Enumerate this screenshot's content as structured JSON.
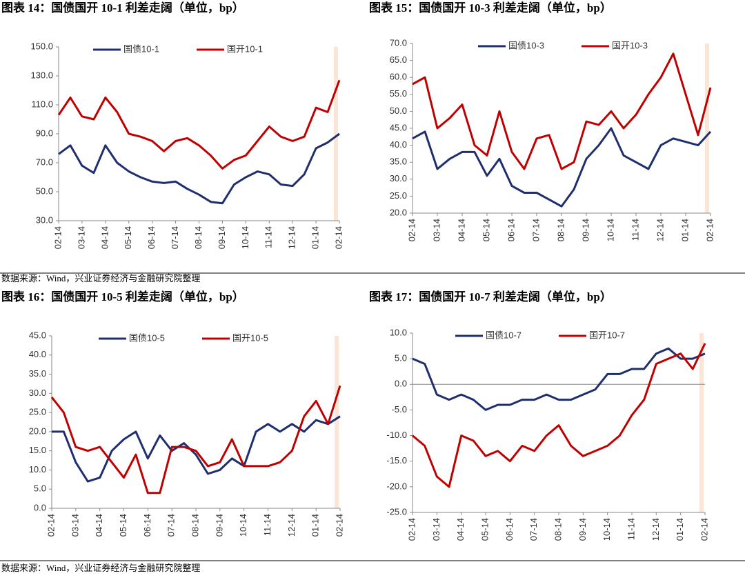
{
  "chart_data": [
    {
      "type": "line",
      "title": "图表 14：国债国开 10-1 利差走阔（单位，bp）",
      "categories": [
        "02-14",
        null,
        "03-14",
        null,
        "04-14",
        null,
        "05-14",
        null,
        "06-14",
        null,
        "07-14",
        null,
        "08-14",
        null,
        "09-14",
        null,
        "10-14",
        null,
        "11-14",
        null,
        "12-14",
        null,
        "01-14",
        null,
        "02-14"
      ],
      "series": [
        {
          "name": "国债10-1",
          "color": "#1f2f6e",
          "values": [
            76,
            82,
            68,
            63,
            82,
            70,
            64,
            60,
            57,
            56,
            57,
            52,
            48,
            43,
            42,
            55,
            60,
            64,
            62,
            55,
            54,
            62,
            80,
            84,
            90
          ]
        },
        {
          "name": "国开10-1",
          "color": "#c00000",
          "values": [
            103,
            115,
            102,
            100,
            115,
            105,
            90,
            88,
            85,
            78,
            85,
            87,
            82,
            75,
            66,
            72,
            75,
            85,
            95,
            88,
            85,
            88,
            108,
            105,
            127
          ]
        }
      ],
      "ylim": [
        30,
        150
      ],
      "yticks": [
        {
          "value": 30,
          "label": "30.0"
        },
        {
          "value": 50,
          "label": "50.0"
        },
        {
          "value": 70,
          "label": "70.0"
        },
        {
          "value": 90,
          "label": "90.0"
        },
        {
          "value": 110,
          "label": "110.0"
        },
        {
          "value": 130,
          "label": "130.0"
        },
        {
          "value": 150,
          "label": "150.0"
        }
      ],
      "legend": "top"
    },
    {
      "type": "line",
      "title": "图表 15：国债国开 10-3 利差走阔（单位，bp）",
      "categories": [
        "02-14",
        null,
        "03-14",
        null,
        "04-14",
        null,
        "05-14",
        null,
        "06-14",
        null,
        "07-14",
        null,
        "08-14",
        null,
        "09-14",
        null,
        "10-14",
        null,
        "11-14",
        null,
        "12-14",
        null,
        "01-14",
        null,
        "02-14"
      ],
      "series": [
        {
          "name": "国债10-3",
          "color": "#1f2f6e",
          "values": [
            42,
            44,
            33,
            36,
            38,
            38,
            31,
            36,
            28,
            26,
            26,
            24,
            22,
            27,
            36,
            40,
            45,
            37,
            35,
            33,
            40,
            42,
            41,
            40,
            44
          ]
        },
        {
          "name": "国开10-3",
          "color": "#c00000",
          "values": [
            58,
            60,
            45,
            48,
            52,
            40,
            37,
            50,
            38,
            33,
            42,
            43,
            33,
            35,
            47,
            46,
            50,
            45,
            49,
            55,
            60,
            67,
            55,
            43,
            57
          ]
        }
      ],
      "ylim": [
        20,
        70
      ],
      "yticks": [
        {
          "value": 20,
          "label": "20.0"
        },
        {
          "value": 25,
          "label": "25.0"
        },
        {
          "value": 30,
          "label": "30.0"
        },
        {
          "value": 35,
          "label": "35.0"
        },
        {
          "value": 40,
          "label": "40.0"
        },
        {
          "value": 45,
          "label": "45.0"
        },
        {
          "value": 50,
          "label": "50.0"
        },
        {
          "value": 55,
          "label": "55.0"
        },
        {
          "value": 60,
          "label": "60.0"
        },
        {
          "value": 65,
          "label": "65.0"
        },
        {
          "value": 70,
          "label": "70.0"
        }
      ],
      "legend": "top"
    },
    {
      "type": "line",
      "title": "图表 16：国债国开 10-5 利差走阔（单位，bp）",
      "categories": [
        "02-14",
        null,
        "03-14",
        null,
        "04-14",
        null,
        "05-14",
        null,
        "06-14",
        null,
        "07-14",
        null,
        "08-14",
        null,
        "09-14",
        null,
        "10-14",
        null,
        "11-14",
        null,
        "12-14",
        null,
        "01-14",
        null,
        "02-14"
      ],
      "series": [
        {
          "name": "国债10-5",
          "color": "#1f2f6e",
          "values": [
            20,
            20,
            12,
            7,
            8,
            15,
            18,
            20,
            13,
            19,
            15,
            17,
            14,
            9,
            10,
            13,
            11,
            20,
            22,
            20,
            22,
            20,
            23,
            22,
            24
          ]
        },
        {
          "name": "国开10-5",
          "color": "#c00000",
          "values": [
            29,
            25,
            16,
            15,
            16,
            12,
            8,
            14,
            4,
            4,
            16,
            16,
            15,
            11,
            12,
            18,
            11,
            11,
            11,
            12,
            15,
            24,
            28,
            22,
            32
          ]
        }
      ],
      "ylim": [
        0,
        45
      ],
      "yticks": [
        {
          "value": 0,
          "label": "0.0"
        },
        {
          "value": 5,
          "label": "5.0"
        },
        {
          "value": 10,
          "label": "10.0"
        },
        {
          "value": 15,
          "label": "15.0"
        },
        {
          "value": 20,
          "label": "20.0"
        },
        {
          "value": 25,
          "label": "25.0"
        },
        {
          "value": 30,
          "label": "30.0"
        },
        {
          "value": 35,
          "label": "35.0"
        },
        {
          "value": 40,
          "label": "40.0"
        },
        {
          "value": 45,
          "label": "45.0"
        }
      ],
      "legend": "top"
    },
    {
      "type": "line",
      "title": "图表 17：国债国开 10-7 利差走阔（单位，bp）",
      "categories": [
        "02-14",
        null,
        "03-14",
        null,
        "04-14",
        null,
        "05-14",
        null,
        "06-14",
        null,
        "07-14",
        null,
        "08-14",
        null,
        "09-14",
        null,
        "10-14",
        null,
        "11-14",
        null,
        "12-14",
        null,
        "01-14",
        null,
        "02-14"
      ],
      "series": [
        {
          "name": "国债10-7",
          "color": "#1f2f6e",
          "values": [
            5,
            4,
            -2,
            -3,
            -2,
            -3,
            -5,
            -4,
            -4,
            -3,
            -3,
            -2,
            -3,
            -3,
            -2,
            -1,
            2,
            2,
            3,
            3,
            6,
            7,
            5,
            5,
            6
          ]
        },
        {
          "name": "国开10-7",
          "color": "#c00000",
          "values": [
            -10,
            -12,
            -18,
            -20,
            -10,
            -11,
            -14,
            -13,
            -15,
            -12,
            -13,
            -10,
            -8,
            -12,
            -14,
            -13,
            -12,
            -10,
            -6,
            -3,
            4,
            5,
            6,
            3,
            8
          ]
        }
      ],
      "ylim": [
        -25,
        10
      ],
      "yticks": [
        {
          "value": -25,
          "label": "-25.0"
        },
        {
          "value": -20,
          "label": "-20.0"
        },
        {
          "value": -15,
          "label": "-15.0"
        },
        {
          "value": -10,
          "label": "-10.0"
        },
        {
          "value": -5,
          "label": "-5.0"
        },
        {
          "value": 0,
          "label": "0.0"
        },
        {
          "value": 5,
          "label": "5.0"
        },
        {
          "value": 10,
          "label": "10.0"
        }
      ],
      "legend": "top"
    }
  ],
  "sources": [
    "数据来源：Wind，兴业证券经济与金融研究院整理",
    "数据来源：Wind，兴业证券经济与金融研究院整理"
  ]
}
